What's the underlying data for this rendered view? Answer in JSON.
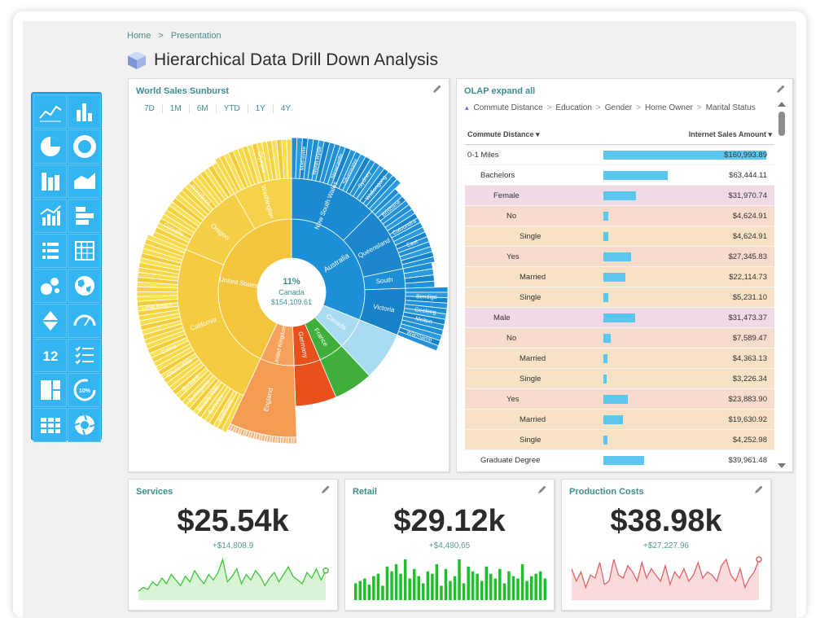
{
  "breadcrumb": {
    "home": "Home",
    "sep": ">",
    "current": "Presentation"
  },
  "page": {
    "title": "Hierarchical Data Drill Down Analysis"
  },
  "toolbox": {
    "icons": [
      "line-chart-icon",
      "bar-chart-icon",
      "pie-chart-icon",
      "donut-chart-icon",
      "stacked-bar-icon",
      "area-chart-icon",
      "combo-chart-icon",
      "horizontal-bar-icon",
      "list-icon",
      "pivot-grid-icon",
      "bubble-chart-icon",
      "map-icon",
      "funnel-icon",
      "gauge-icon",
      "number-icon",
      "checklist-icon",
      "treemap-icon",
      "percentage-icon",
      "table-icon",
      "sunburst-icon"
    ],
    "number_label": "12",
    "percent_label": "10%"
  },
  "sunburst": {
    "title": "World Sales Sunburst",
    "periods": [
      "7D",
      "1M",
      "6M",
      "YTD",
      "1Y",
      "4Y"
    ],
    "center": {
      "percent": "11%",
      "name": "Canada",
      "value": "$154,109.61"
    },
    "labels": {
      "us": "United States",
      "california": "California",
      "oregon": "Oregon",
      "washington": "Washington",
      "olympia": "Olympia",
      "australia": "Australia",
      "nsw": "New South Wales",
      "queensland": "Queensland",
      "south": "South",
      "victoria": "Victoria",
      "canada": "Canada",
      "france": "France",
      "germany": "Germany",
      "uk": "United Kingdom",
      "england": "England",
      "corvallis": "Corvallis",
      "long_beach": "Long Beach",
      "colma": "Colma",
      "chula_vista": "Chula Vista",
      "burbank": "Burbank",
      "burlingame": "Burlingame",
      "beverly_hills": "Beverly Hills",
      "berkeley": "Berkeley",
      "bellflower": "Bellflower",
      "woodburn": "Woodburn",
      "brisbane": "Brisbane",
      "caloundra": "Caloundra",
      "east": "East",
      "bendigo": "Bendigo",
      "geelong": "Geelong",
      "melton": "Melton",
      "warrnambool": "Warrnamb",
      "matraville": "Matraville",
      "north_ryde": "North Ryde",
      "newcastle": "Newcastle",
      "silverwater": "Silverwater",
      "sydney": "Sydney",
      "wollongong": "Wollongong"
    },
    "colors": {
      "us": "#f5c744",
      "australia": "#1d8fd6",
      "canada": "#a9dcf2",
      "france": "#3fae3a",
      "germany": "#e8501c",
      "uk": "#f5a15c"
    }
  },
  "olap": {
    "title": "OLAP expand all",
    "path": [
      "Commute Distance",
      "Education",
      "Gender",
      "Home Owner",
      "Marital Status"
    ],
    "col_dim": "Commute Distance",
    "col_measure": "Internet Sales Amount",
    "rows": [
      {
        "label": "0-1 Miles",
        "value": "$160,993.89",
        "amount": 160993.89,
        "level": 0,
        "bg": "#ffffff"
      },
      {
        "label": "Bachelors",
        "value": "$63,444.11",
        "amount": 63444.11,
        "level": 1,
        "bg": "#ffffff"
      },
      {
        "label": "Female",
        "value": "$31,970.74",
        "amount": 31970.74,
        "level": 2,
        "bg": "#f1d9e6"
      },
      {
        "label": "No",
        "value": "$4,624.91",
        "amount": 4624.91,
        "level": 3,
        "bg": "#f7dbcc"
      },
      {
        "label": "Single",
        "value": "$4,624.91",
        "amount": 4624.91,
        "level": 4,
        "bg": "#f7e2c6"
      },
      {
        "label": "Yes",
        "value": "$27,345.83",
        "amount": 27345.83,
        "level": 3,
        "bg": "#f7dbcc"
      },
      {
        "label": "Married",
        "value": "$22,114.73",
        "amount": 22114.73,
        "level": 4,
        "bg": "#f7e2c6"
      },
      {
        "label": "Single",
        "value": "$5,231.10",
        "amount": 5231.1,
        "level": 4,
        "bg": "#f7e2c6"
      },
      {
        "label": "Male",
        "value": "$31,473.37",
        "amount": 31473.37,
        "level": 2,
        "bg": "#f1d9e6"
      },
      {
        "label": "No",
        "value": "$7,589.47",
        "amount": 7589.47,
        "level": 3,
        "bg": "#f7dbcc"
      },
      {
        "label": "Married",
        "value": "$4,363.13",
        "amount": 4363.13,
        "level": 4,
        "bg": "#f7e2c6"
      },
      {
        "label": "Single",
        "value": "$3,226.34",
        "amount": 3226.34,
        "level": 4,
        "bg": "#f7e2c6"
      },
      {
        "label": "Yes",
        "value": "$23,883.90",
        "amount": 23883.9,
        "level": 3,
        "bg": "#f7dbcc"
      },
      {
        "label": "Married",
        "value": "$19,630.92",
        "amount": 19630.92,
        "level": 4,
        "bg": "#f7e2c6"
      },
      {
        "label": "Single",
        "value": "$4,252.98",
        "amount": 4252.98,
        "level": 4,
        "bg": "#f7e2c6"
      },
      {
        "label": "Graduate Degree",
        "value": "$39,961.48",
        "amount": 39961.48,
        "level": 1,
        "bg": "#ffffff"
      }
    ]
  },
  "kpis": [
    {
      "title": "Services",
      "value": "$25.54k",
      "delta": "+$14,808.9",
      "type": "line",
      "color": "#3ec63a",
      "fill": "#d8f3d5",
      "series": [
        3,
        5,
        4,
        8,
        6,
        10,
        7,
        12,
        9,
        6,
        11,
        8,
        14,
        10,
        7,
        12,
        9,
        13,
        20,
        8,
        11,
        15,
        7,
        12,
        9,
        14,
        11,
        6,
        10,
        13,
        8,
        12,
        16,
        11,
        9,
        7,
        13,
        10,
        15,
        9,
        14
      ]
    },
    {
      "title": "Retail",
      "value": "$29.12k",
      "delta": "+$4,480.65",
      "type": "bar",
      "color": "#1fbf2a",
      "series": [
        14,
        16,
        18,
        13,
        20,
        22,
        12,
        28,
        24,
        30,
        22,
        34,
        18,
        26,
        20,
        14,
        24,
        22,
        30,
        12,
        26,
        16,
        20,
        34,
        14,
        28,
        24,
        22,
        16,
        28,
        22,
        18,
        26,
        14,
        24,
        20,
        18,
        30,
        16,
        20,
        22,
        24,
        18
      ]
    },
    {
      "title": "Production Costs",
      "value": "$38.98k",
      "delta": "+$27,227.96",
      "type": "line",
      "color": "#e0646a",
      "fill": "#f9dbdc",
      "series": [
        18,
        10,
        16,
        6,
        14,
        12,
        22,
        8,
        10,
        24,
        14,
        12,
        20,
        16,
        10,
        22,
        12,
        18,
        14,
        10,
        20,
        8,
        16,
        12,
        18,
        10,
        14,
        22,
        12,
        16,
        14,
        10,
        20,
        24,
        14,
        10,
        18,
        6,
        12,
        16,
        24
      ]
    }
  ]
}
